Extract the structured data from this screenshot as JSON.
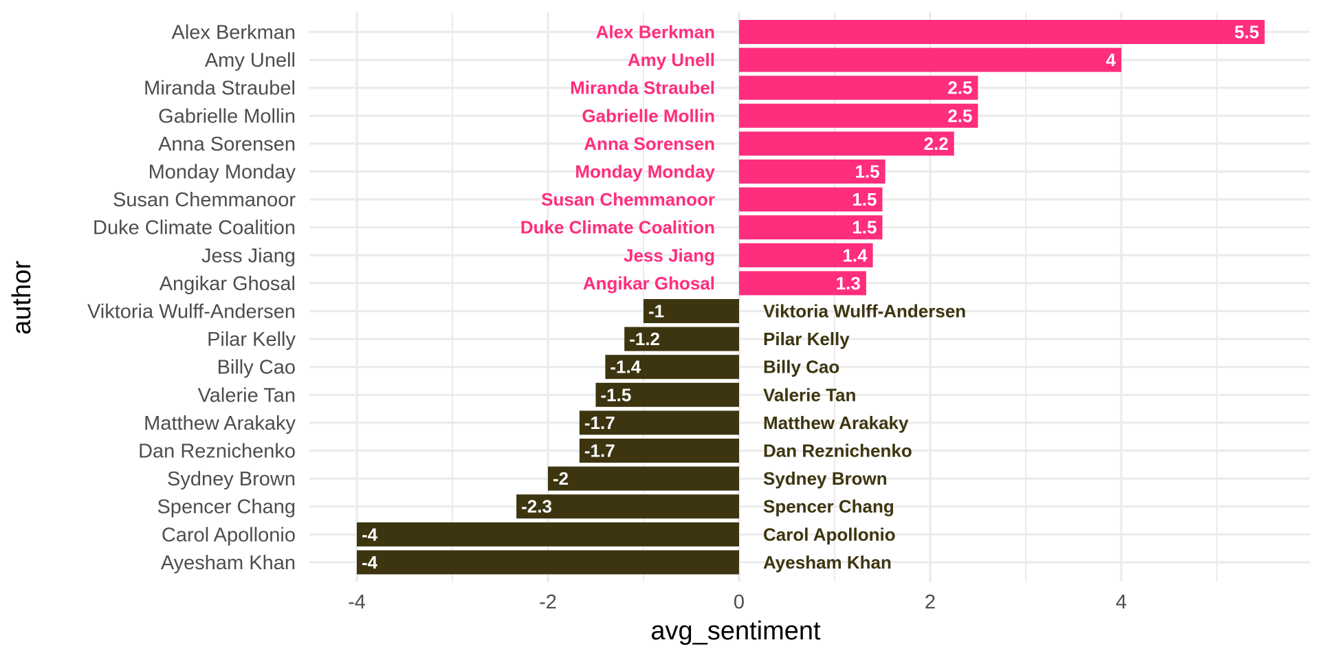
{
  "chart_data": {
    "type": "bar",
    "orientation": "horizontal",
    "xlabel": "avg_sentiment",
    "ylabel": "author",
    "xlim": [
      -4.4,
      6.0
    ],
    "xticks": [
      -4,
      -2,
      0,
      2,
      4
    ],
    "xtick_labels": [
      "-4",
      "-2",
      "0",
      "2",
      "4"
    ],
    "grid": true,
    "legend": "none",
    "colors": {
      "positive": "#FF2D7E",
      "negative": "#3D3510",
      "grid": "#EBEBEB"
    },
    "bars": [
      {
        "author": "Alex Berkman",
        "value": 5.5,
        "label": "5.5"
      },
      {
        "author": "Amy Unell",
        "value": 4,
        "label": "4"
      },
      {
        "author": "Miranda Straubel",
        "value": 2.5,
        "label": "2.5"
      },
      {
        "author": "Gabrielle Mollin",
        "value": 2.5,
        "label": "2.5"
      },
      {
        "author": "Anna Sorensen",
        "value": 2.25,
        "label": "2.2"
      },
      {
        "author": "Monday Monday",
        "value": 1.53,
        "label": "1.5"
      },
      {
        "author": "Susan Chemmanoor",
        "value": 1.5,
        "label": "1.5"
      },
      {
        "author": "Duke Climate Coalition",
        "value": 1.5,
        "label": "1.5"
      },
      {
        "author": "Jess Jiang",
        "value": 1.4,
        "label": "1.4"
      },
      {
        "author": "Angikar Ghosal",
        "value": 1.33,
        "label": "1.3"
      },
      {
        "author": "Viktoria Wulff-Andersen",
        "value": -1,
        "label": "-1"
      },
      {
        "author": "Pilar Kelly",
        "value": -1.2,
        "label": "-1.2"
      },
      {
        "author": "Billy Cao",
        "value": -1.4,
        "label": "-1.4"
      },
      {
        "author": "Valerie Tan",
        "value": -1.5,
        "label": "-1.5"
      },
      {
        "author": "Matthew Arakaky",
        "value": -1.67,
        "label": "-1.7"
      },
      {
        "author": "Dan Reznichenko",
        "value": -1.67,
        "label": "-1.7"
      },
      {
        "author": "Sydney Brown",
        "value": -2,
        "label": "-2"
      },
      {
        "author": "Spencer Chang",
        "value": -2.33,
        "label": "-2.3"
      },
      {
        "author": "Carol Apollonio",
        "value": -4,
        "label": "-4"
      },
      {
        "author": "Ayesham Khan",
        "value": -4,
        "label": "-4"
      }
    ]
  }
}
